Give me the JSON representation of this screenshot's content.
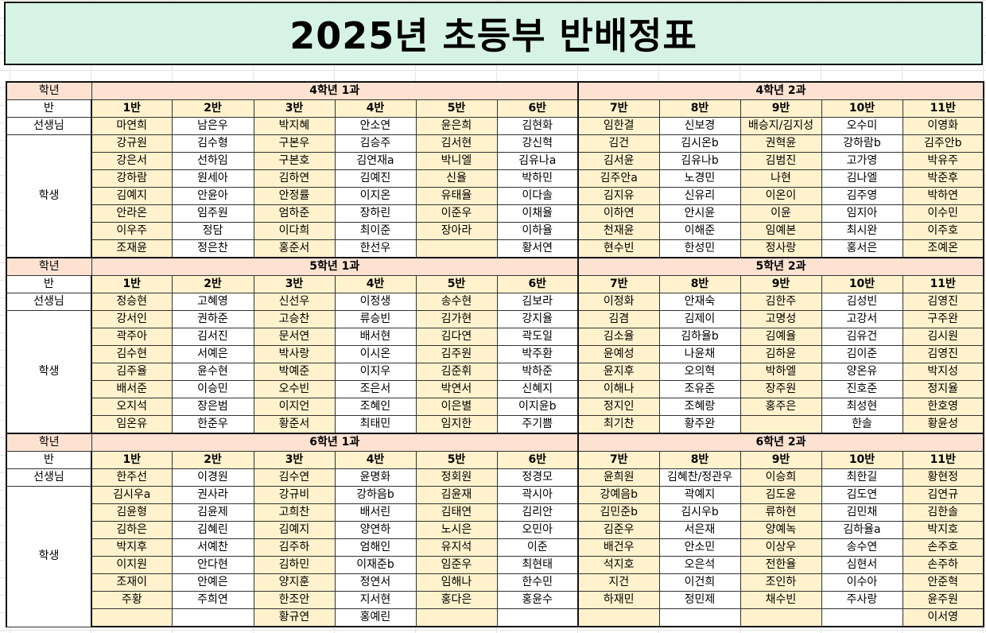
{
  "title": "2025년 초등부 반배정표",
  "labels": {
    "grade": "학년",
    "class": "반",
    "teacher": "선생님",
    "students": "학생"
  },
  "grades": [
    {
      "group1": "4학년 1과",
      "group2": "4학년 2과",
      "classes": [
        "1반",
        "2반",
        "3반",
        "4반",
        "5반",
        "6반",
        "7반",
        "8반",
        "9반",
        "10반",
        "11반"
      ],
      "teachers": [
        "마연희",
        "남은우",
        "박지혜",
        "안소연",
        "윤은희",
        "김현화",
        "임한결",
        "신보경",
        "배승지/김지성",
        "오수미",
        "이영화"
      ],
      "students": [
        [
          "강규원",
          "김수형",
          "구본우",
          "김승주",
          "김서현",
          "강신혁",
          "김건",
          "김시온b",
          "권혁윤",
          "강하람b",
          "김주안b"
        ],
        [
          "강은서",
          "선하임",
          "구본호",
          "김연재a",
          "박니엘",
          "김유나a",
          "김서윤",
          "김유나b",
          "김범진",
          "고가영",
          "박유주"
        ],
        [
          "강하람",
          "원세아",
          "김하연",
          "김예진",
          "신율",
          "박하민",
          "김주안a",
          "노경민",
          "나현",
          "김나엘",
          "박준후"
        ],
        [
          "김예지",
          "안윤아",
          "안정률",
          "이지온",
          "유태율",
          "이다솔",
          "김지유",
          "신유리",
          "이온이",
          "김주영",
          "박하연"
        ],
        [
          "안라온",
          "임주원",
          "엄하준",
          "장하린",
          "이준우",
          "이채율",
          "이하연",
          "안시윤",
          "이윤",
          "임지아",
          "이수민"
        ],
        [
          "이우주",
          "정담",
          "이다희",
          "최이준",
          "장아라",
          "이하율",
          "천재윤",
          "이해준",
          "임예본",
          "최시완",
          "이주호"
        ],
        [
          "조재윤",
          "정은찬",
          "홍준서",
          "한선우",
          "",
          "황서연",
          "현수빈",
          "한성민",
          "정사랑",
          "홍서은",
          "조예온"
        ]
      ]
    },
    {
      "group1": "5학년 1과",
      "group2": "5학년 2과",
      "classes": [
        "1반",
        "2반",
        "3반",
        "4반",
        "5반",
        "6반",
        "7반",
        "8반",
        "9반",
        "10반",
        "11반"
      ],
      "teachers": [
        "정승현",
        "고혜영",
        "신선우",
        "이정생",
        "송수현",
        "김보라",
        "이정화",
        "안재숙",
        "김한주",
        "김성빈",
        "김영진"
      ],
      "students": [
        [
          "강서인",
          "권하준",
          "고승찬",
          "류승빈",
          "김가현",
          "강지율",
          "김겸",
          "김제이",
          "고명성",
          "고강서",
          "구주완"
        ],
        [
          "곽주아",
          "김서진",
          "문서연",
          "배서현",
          "김다연",
          "곽도일",
          "김소율",
          "김하율b",
          "김예율",
          "김유건",
          "김시원"
        ],
        [
          "김수현",
          "서예은",
          "박사랑",
          "이시온",
          "김주원",
          "박주환",
          "윤예성",
          "나윤채",
          "김하윤",
          "김이준",
          "김영진"
        ],
        [
          "김주율",
          "윤수현",
          "박예준",
          "이지우",
          "김준휘",
          "박하준",
          "윤지후",
          "오의혁",
          "박하엘",
          "양온유",
          "박지성"
        ],
        [
          "배서준",
          "이승민",
          "오수빈",
          "조은서",
          "박연서",
          "신혜지",
          "이해나",
          "조유준",
          "장주원",
          "진호준",
          "정지율"
        ],
        [
          "오지석",
          "장은범",
          "이지언",
          "조혜인",
          "이은별",
          "이지윤b",
          "정지인",
          "조혜랑",
          "홍주은",
          "최성현",
          "한호영"
        ],
        [
          "임온유",
          "한준우",
          "황준서",
          "최태민",
          "임지한",
          "주기쁨",
          "최기찬",
          "황주완",
          "",
          "한솔",
          "황윤성"
        ]
      ]
    },
    {
      "group1": "6학년 1과",
      "group2": "6학년 2과",
      "classes": [
        "1반",
        "2반",
        "3반",
        "4반",
        "5반",
        "6반",
        "7반",
        "8반",
        "9반",
        "10반",
        "11반"
      ],
      "teachers": [
        "한주선",
        "이경원",
        "김수연",
        "윤명화",
        "정회원",
        "정경모",
        "윤희원",
        "김혜찬/정관우",
        "이승희",
        "최한길",
        "황현정"
      ],
      "students": [
        [
          "김시우a",
          "권사라",
          "강규비",
          "강하음b",
          "김윤재",
          "곽시아",
          "강예음b",
          "곽예지",
          "김도윤",
          "김도연",
          "김연규"
        ],
        [
          "김윤형",
          "김윤제",
          "고희찬",
          "배서린",
          "김태연",
          "김리안",
          "김민준b",
          "김시우b",
          "류하현",
          "김민채",
          "김한솔"
        ],
        [
          "김하은",
          "김혜린",
          "김예지",
          "양연하",
          "노시은",
          "오민아",
          "김준우",
          "서은재",
          "양예녹",
          "김하율a",
          "박지호"
        ],
        [
          "박지후",
          "서예찬",
          "김주하",
          "엄해인",
          "유지석",
          "이준",
          "배건우",
          "안소민",
          "이상우",
          "송수연",
          "손주호"
        ],
        [
          "이지원",
          "안다현",
          "김하민",
          "이재준b",
          "임준우",
          "최현태",
          "석지호",
          "오은석",
          "전한율",
          "심현서",
          "손주하"
        ],
        [
          "조재이",
          "안예은",
          "양지훈",
          "정연서",
          "임해나",
          "한수민",
          "지건",
          "이건희",
          "조인하",
          "이수아",
          "안준혁"
        ],
        [
          "주황",
          "주희연",
          "한조안",
          "지서현",
          "홍다은",
          "홍윤수",
          "하재민",
          "정민제",
          "채수빈",
          "주사랑",
          "윤주원"
        ],
        [
          "",
          "",
          "황규연",
          "홍예린",
          "",
          "",
          "",
          "",
          "",
          "",
          "이서영"
        ]
      ]
    }
  ]
}
